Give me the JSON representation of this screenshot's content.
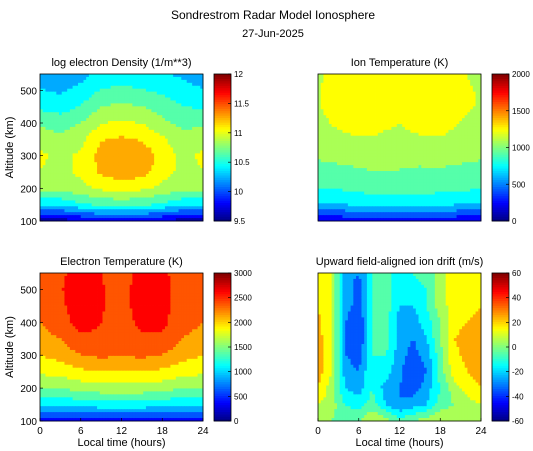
{
  "figure": {
    "title": "Sondrestrom Radar Model Ionosphere",
    "subtitle": "27-Jun-2025"
  },
  "chart_data": [
    {
      "type": "heatmap",
      "title": "log electron Density (1/m**3)",
      "xlabel": "",
      "ylabel": "Altitude (km)",
      "xlim": [
        0,
        24
      ],
      "ylim": [
        100,
        550
      ],
      "xticks": [],
      "yticks": [
        100,
        200,
        300,
        400,
        500
      ],
      "zlim": [
        9.5,
        12
      ],
      "colorbar_ticks": [
        9.5,
        10,
        10.5,
        11,
        11.5,
        12
      ],
      "x": [
        0,
        3,
        6,
        9,
        12,
        15,
        18,
        21,
        24
      ],
      "y": [
        100,
        150,
        200,
        250,
        300,
        350,
        400,
        450,
        500,
        550
      ],
      "z": [
        [
          9.6,
          9.6,
          9.7,
          9.8,
          9.8,
          9.8,
          9.7,
          9.6,
          9.6
        ],
        [
          10.4,
          10.4,
          10.5,
          10.6,
          10.6,
          10.6,
          10.5,
          10.4,
          10.4
        ],
        [
          10.8,
          10.8,
          10.9,
          11.0,
          11.05,
          11.0,
          10.9,
          10.8,
          10.8
        ],
        [
          10.95,
          10.9,
          11.0,
          11.2,
          11.3,
          11.25,
          11.05,
          10.9,
          10.95
        ],
        [
          11.0,
          10.9,
          11.0,
          11.25,
          11.35,
          11.3,
          11.1,
          10.9,
          11.0
        ],
        [
          10.9,
          10.8,
          10.9,
          11.15,
          11.2,
          11.15,
          11.0,
          10.8,
          10.9
        ],
        [
          10.7,
          10.65,
          10.75,
          10.95,
          11.0,
          10.95,
          10.8,
          10.7,
          10.7
        ],
        [
          10.5,
          10.45,
          10.55,
          10.75,
          10.8,
          10.75,
          10.65,
          10.55,
          10.5
        ],
        [
          10.35,
          10.3,
          10.4,
          10.55,
          10.6,
          10.55,
          10.5,
          10.4,
          10.35
        ],
        [
          10.2,
          10.2,
          10.25,
          10.4,
          10.45,
          10.4,
          10.35,
          10.3,
          10.2
        ]
      ]
    },
    {
      "type": "heatmap",
      "title": "Ion Temperature (K)",
      "xlabel": "",
      "ylabel": "",
      "xlim": [
        0,
        24
      ],
      "ylim": [
        100,
        550
      ],
      "xticks": [],
      "yticks": [],
      "zlim": [
        0,
        2000
      ],
      "colorbar_ticks": [
        0,
        500,
        1000,
        1500,
        2000
      ],
      "x": [
        0,
        3,
        6,
        9,
        12,
        15,
        18,
        21,
        24
      ],
      "y": [
        100,
        150,
        200,
        250,
        300,
        350,
        400,
        450,
        500,
        550
      ],
      "z": [
        [
          200,
          200,
          250,
          250,
          250,
          250,
          250,
          200,
          200
        ],
        [
          650,
          650,
          700,
          720,
          720,
          720,
          700,
          660,
          650
        ],
        [
          850,
          850,
          880,
          900,
          900,
          900,
          880,
          860,
          850
        ],
        [
          950,
          960,
          980,
          1000,
          990,
          980,
          980,
          960,
          950
        ],
        [
          1020,
          1040,
          1060,
          1080,
          1060,
          1040,
          1060,
          1040,
          1020
        ],
        [
          1080,
          1120,
          1150,
          1150,
          1120,
          1140,
          1150,
          1100,
          1080
        ],
        [
          1120,
          1200,
          1260,
          1200,
          1170,
          1240,
          1250,
          1160,
          1120
        ],
        [
          1150,
          1260,
          1330,
          1230,
          1190,
          1310,
          1300,
          1200,
          1150
        ],
        [
          1150,
          1280,
          1320,
          1230,
          1190,
          1300,
          1290,
          1200,
          1150
        ],
        [
          1130,
          1240,
          1260,
          1200,
          1180,
          1250,
          1240,
          1180,
          1130
        ]
      ]
    },
    {
      "type": "heatmap",
      "title": "Electron Temperature (K)",
      "xlabel": "Local time (hours)",
      "ylabel": "Altitude (km)",
      "xlim": [
        0,
        24
      ],
      "ylim": [
        100,
        550
      ],
      "xticks": [
        0,
        6,
        12,
        18,
        24
      ],
      "yticks": [
        100,
        200,
        300,
        400,
        500
      ],
      "zlim": [
        0,
        3000
      ],
      "colorbar_ticks": [
        0,
        500,
        1000,
        1500,
        2000,
        2500,
        3000
      ],
      "x": [
        0,
        3,
        6,
        9,
        12,
        15,
        18,
        21,
        24
      ],
      "y": [
        100,
        150,
        200,
        250,
        300,
        350,
        400,
        450,
        500,
        550
      ],
      "z": [
        [
          350,
          350,
          380,
          400,
          400,
          400,
          380,
          350,
          350
        ],
        [
          1050,
          1050,
          1100,
          1150,
          1150,
          1150,
          1100,
          1060,
          1050
        ],
        [
          1500,
          1520,
          1600,
          1650,
          1650,
          1650,
          1600,
          1520,
          1500
        ],
        [
          1800,
          1850,
          1950,
          2000,
          1990,
          2000,
          1950,
          1850,
          1800
        ],
        [
          2000,
          2100,
          2250,
          2300,
          2260,
          2300,
          2250,
          2100,
          2000
        ],
        [
          2150,
          2250,
          2450,
          2450,
          2350,
          2450,
          2450,
          2250,
          2150
        ],
        [
          2250,
          2400,
          2600,
          2500,
          2400,
          2560,
          2560,
          2350,
          2250
        ],
        [
          2280,
          2450,
          2650,
          2520,
          2420,
          2600,
          2580,
          2380,
          2280
        ],
        [
          2300,
          2480,
          2650,
          2520,
          2420,
          2600,
          2580,
          2400,
          2300
        ],
        [
          2300,
          2450,
          2620,
          2500,
          2400,
          2580,
          2550,
          2380,
          2300
        ]
      ]
    },
    {
      "type": "heatmap",
      "title": "Upward field-aligned ion drift (m/s)",
      "xlabel": "Local time (hours)",
      "ylabel": "",
      "xlim": [
        0,
        24
      ],
      "ylim": [
        100,
        550
      ],
      "xticks": [
        0,
        6,
        12,
        18,
        24
      ],
      "yticks": [],
      "zlim": [
        -60,
        60
      ],
      "colorbar_ticks": [
        -60,
        -40,
        -20,
        0,
        20,
        40,
        60
      ],
      "x": [
        0,
        2,
        4,
        6,
        8,
        10,
        12,
        14,
        16,
        18,
        20,
        22,
        24
      ],
      "y": [
        100,
        150,
        200,
        250,
        300,
        350,
        400,
        450,
        500,
        550
      ],
      "z": [
        [
          5,
          0,
          -5,
          0,
          10,
          5,
          -5,
          0,
          5,
          10,
          5,
          0,
          5
        ],
        [
          10,
          5,
          -10,
          -15,
          -5,
          -20,
          -30,
          -25,
          -20,
          -5,
          0,
          5,
          10
        ],
        [
          20,
          5,
          -20,
          -25,
          -10,
          -25,
          -30,
          -35,
          -25,
          -10,
          5,
          15,
          20
        ],
        [
          25,
          10,
          -25,
          -30,
          -10,
          -15,
          -28,
          -40,
          -30,
          -5,
          15,
          20,
          25
        ],
        [
          25,
          10,
          -30,
          -35,
          -10,
          -10,
          -25,
          -35,
          -25,
          -5,
          18,
          22,
          25
        ],
        [
          25,
          10,
          -30,
          -40,
          -10,
          -5,
          -25,
          -30,
          -20,
          0,
          20,
          22,
          25
        ],
        [
          22,
          10,
          -30,
          -40,
          -10,
          -5,
          -25,
          -25,
          -15,
          0,
          18,
          20,
          22
        ],
        [
          20,
          10,
          -25,
          -35,
          -10,
          -5,
          -20,
          -20,
          -10,
          5,
          15,
          18,
          20
        ],
        [
          20,
          10,
          -25,
          -35,
          -10,
          -5,
          -20,
          -15,
          -10,
          5,
          15,
          18,
          20
        ],
        [
          20,
          10,
          -25,
          -30,
          -10,
          -5,
          -15,
          -10,
          -5,
          5,
          15,
          18,
          20
        ]
      ]
    }
  ]
}
